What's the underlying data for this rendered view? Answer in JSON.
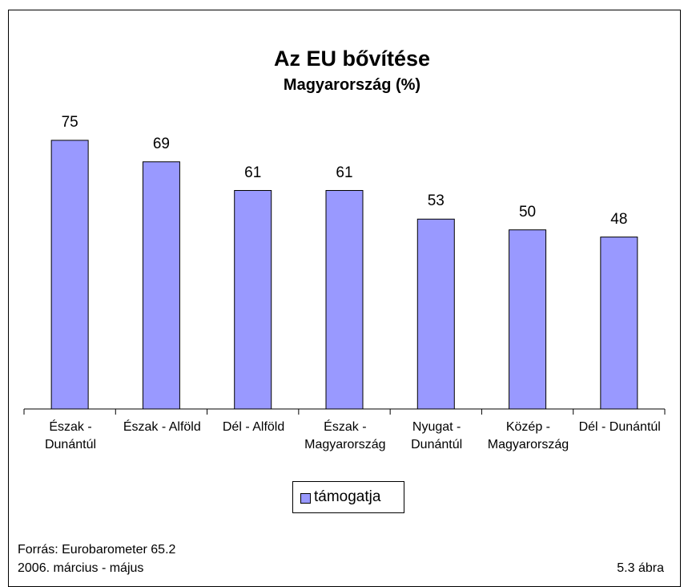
{
  "chart_data": {
    "type": "bar",
    "title": "Az EU bővítése",
    "subtitle": "Magyarország (%)",
    "categories": [
      "Észak -\nDunántúl",
      "Észak - Alföld",
      "Dél - Alföld",
      "Észak -\nMagyarország",
      "Nyugat -\nDunántúl",
      "Közép -\nMagyarország",
      "Dél - Dunántúl"
    ],
    "series": [
      {
        "name": "támogatja",
        "color": "#9999ff",
        "values": [
          75,
          69,
          61,
          61,
          53,
          50,
          48
        ]
      }
    ],
    "legend": "bottom",
    "source": "Forrás: Eurobarometer 65.2",
    "period": "2006. március - május",
    "figure": "5.3 ábra"
  }
}
